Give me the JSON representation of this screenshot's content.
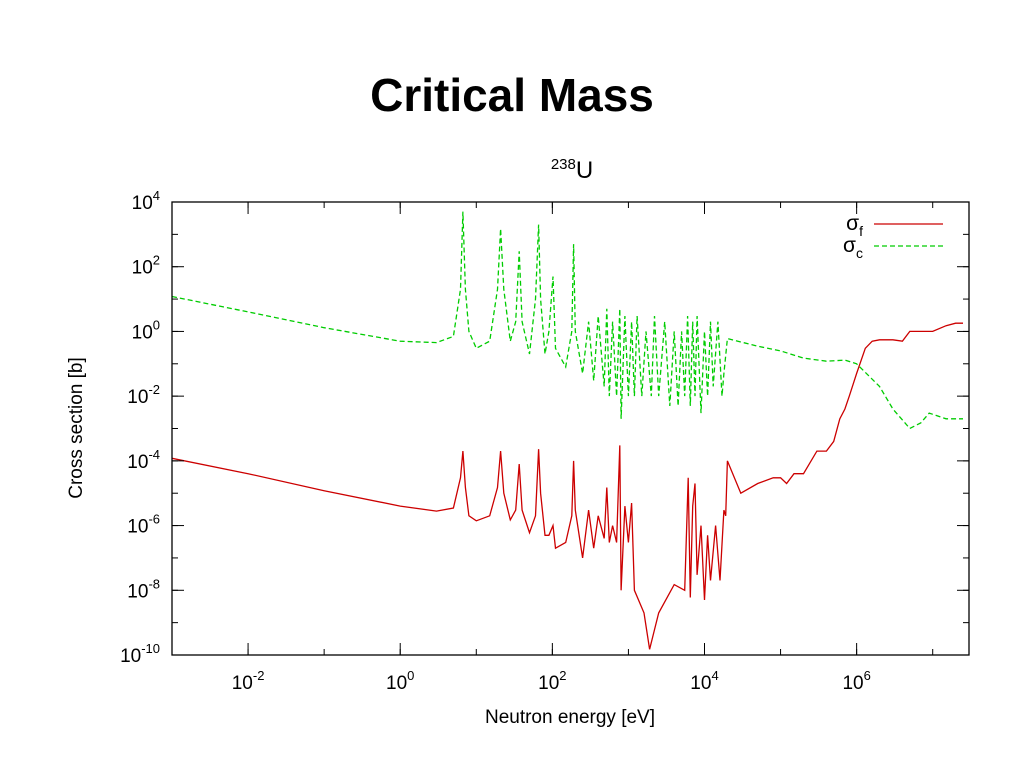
{
  "slide": {
    "title": "Critical Mass"
  },
  "chart_data": {
    "type": "line",
    "title": "U",
    "title_superscript": "238",
    "xlabel": "Neutron energy [eV]",
    "ylabel": "Cross section [b]",
    "x_scale": "log",
    "y_scale": "log",
    "xlim": [
      0.001,
      30000000
    ],
    "ylim": [
      1e-10,
      10000
    ],
    "x_ticks": [
      {
        "value": 0.01,
        "base": "10",
        "exp": "-2"
      },
      {
        "value": 1,
        "base": "10",
        "exp": "0"
      },
      {
        "value": 100,
        "base": "10",
        "exp": "2"
      },
      {
        "value": 10000,
        "base": "10",
        "exp": "4"
      },
      {
        "value": 1000000,
        "base": "10",
        "exp": "6"
      }
    ],
    "y_ticks": [
      {
        "value": 10000,
        "base": "10",
        "exp": "4"
      },
      {
        "value": 100,
        "base": "10",
        "exp": "2"
      },
      {
        "value": 1,
        "base": "10",
        "exp": "0"
      },
      {
        "value": 0.01,
        "base": "10",
        "exp": "-2"
      },
      {
        "value": 0.0001,
        "base": "10",
        "exp": "-4"
      },
      {
        "value": 1e-06,
        "base": "10",
        "exp": "-6"
      },
      {
        "value": 1e-08,
        "base": "10",
        "exp": "-8"
      },
      {
        "value": 1e-10,
        "base": "10",
        "exp": "-10"
      }
    ],
    "grid": false,
    "legend_position": "top-right",
    "series": [
      {
        "name": "σ",
        "name_sub": "f",
        "color": "#cc0000",
        "dash": "solid",
        "points": [
          [
            0.001,
            0.00012
          ],
          [
            0.01,
            4e-05
          ],
          [
            0.1,
            1.2e-05
          ],
          [
            1,
            4e-06
          ],
          [
            3,
            2.8e-06
          ],
          [
            5,
            3.5e-06
          ],
          [
            6.2,
            3e-05
          ],
          [
            6.67,
            0.0002
          ],
          [
            7.2,
            1.5e-05
          ],
          [
            8,
            2e-06
          ],
          [
            10,
            1.4e-06
          ],
          [
            15,
            2e-06
          ],
          [
            19,
            1.5e-05
          ],
          [
            20.9,
            0.0002
          ],
          [
            23,
            1e-05
          ],
          [
            28,
            1.5e-06
          ],
          [
            33,
            3e-06
          ],
          [
            36.7,
            8e-05
          ],
          [
            40,
            3e-06
          ],
          [
            50,
            6e-07
          ],
          [
            60,
            2e-06
          ],
          [
            66,
            0.00023
          ],
          [
            70,
            1e-05
          ],
          [
            80,
            5e-07
          ],
          [
            90,
            5e-07
          ],
          [
            102,
            1e-06
          ],
          [
            110,
            2e-07
          ],
          [
            150,
            3e-07
          ],
          [
            180,
            2e-06
          ],
          [
            190,
            0.0001
          ],
          [
            200,
            3e-06
          ],
          [
            250,
            1e-07
          ],
          [
            300,
            3e-06
          ],
          [
            350,
            2e-07
          ],
          [
            400,
            2e-06
          ],
          [
            480,
            4e-07
          ],
          [
            520,
            1.5e-05
          ],
          [
            560,
            3e-07
          ],
          [
            620,
            1e-06
          ],
          [
            700,
            3e-07
          ],
          [
            770,
            0.0003
          ],
          [
            800,
            1e-08
          ],
          [
            900,
            4e-06
          ],
          [
            1000,
            3e-07
          ],
          [
            1100,
            5e-06
          ],
          [
            1200,
            1e-08
          ],
          [
            1600,
            2e-09
          ],
          [
            1900,
            1.5e-10
          ],
          [
            2500,
            2e-09
          ],
          [
            4000,
            1.5e-08
          ],
          [
            5500,
            1e-08
          ],
          [
            6100,
            3e-05
          ],
          [
            6500,
            6e-09
          ],
          [
            7000,
            4e-06
          ],
          [
            7500,
            2e-05
          ],
          [
            8000,
            3e-08
          ],
          [
            9000,
            1e-06
          ],
          [
            10000,
            5e-09
          ],
          [
            11000,
            5e-07
          ],
          [
            12000,
            2e-08
          ],
          [
            14000,
            1e-06
          ],
          [
            16000,
            2e-08
          ],
          [
            18000,
            3e-06
          ],
          [
            19000,
            2e-06
          ],
          [
            20000,
            0.0001
          ],
          [
            30000,
            1e-05
          ],
          [
            50000,
            2e-05
          ],
          [
            80000,
            3e-05
          ],
          [
            100000,
            3e-05
          ],
          [
            120000,
            2e-05
          ],
          [
            150000,
            4e-05
          ],
          [
            200000,
            4e-05
          ],
          [
            300000,
            0.0002
          ],
          [
            400000,
            0.0002
          ],
          [
            500000,
            0.0004
          ],
          [
            600000,
            0.002
          ],
          [
            700000,
            0.004
          ],
          [
            800000,
            0.01
          ],
          [
            1000000,
            0.05
          ],
          [
            1300000,
            0.3
          ],
          [
            1600000,
            0.5
          ],
          [
            2000000,
            0.55
          ],
          [
            3000000,
            0.55
          ],
          [
            4000000,
            0.5
          ],
          [
            5000000,
            1
          ],
          [
            8000000,
            1
          ],
          [
            10000000,
            1
          ],
          [
            15000000,
            1.5
          ],
          [
            20000000,
            1.8
          ],
          [
            25000000,
            1.8
          ]
        ]
      },
      {
        "name": "σ",
        "name_sub": "c",
        "color": "#00cc00",
        "dash": "dashed",
        "points": [
          [
            0.001,
            12
          ],
          [
            0.01,
            4
          ],
          [
            0.1,
            1.3
          ],
          [
            1,
            0.5
          ],
          [
            3,
            0.45
          ],
          [
            5,
            0.7
          ],
          [
            6.2,
            20
          ],
          [
            6.67,
            5000
          ],
          [
            7.2,
            20
          ],
          [
            8,
            1
          ],
          [
            10,
            0.3
          ],
          [
            15,
            0.5
          ],
          [
            19,
            20
          ],
          [
            20.9,
            1500
          ],
          [
            23,
            20
          ],
          [
            28,
            0.5
          ],
          [
            33,
            2
          ],
          [
            36.7,
            300
          ],
          [
            40,
            2
          ],
          [
            50,
            0.2
          ],
          [
            60,
            10
          ],
          [
            66,
            2000
          ],
          [
            70,
            10
          ],
          [
            80,
            0.2
          ],
          [
            90,
            1
          ],
          [
            102,
            50
          ],
          [
            110,
            0.3
          ],
          [
            150,
            0.08
          ],
          [
            180,
            1
          ],
          [
            190,
            500
          ],
          [
            200,
            1
          ],
          [
            250,
            0.05
          ],
          [
            300,
            2
          ],
          [
            350,
            0.03
          ],
          [
            400,
            3
          ],
          [
            480,
            0.02
          ],
          [
            520,
            5
          ],
          [
            560,
            0.01
          ],
          [
            620,
            2
          ],
          [
            700,
            0.01
          ],
          [
            770,
            5
          ],
          [
            800,
            0.002
          ],
          [
            900,
            3
          ],
          [
            1000,
            0.01
          ],
          [
            1100,
            2
          ],
          [
            1200,
            0.01
          ],
          [
            1300,
            3
          ],
          [
            1500,
            0.01
          ],
          [
            1700,
            1
          ],
          [
            2000,
            0.01
          ],
          [
            2200,
            3
          ],
          [
            2500,
            0.01
          ],
          [
            3000,
            2
          ],
          [
            3500,
            0.005
          ],
          [
            4000,
            1
          ],
          [
            4500,
            0.005
          ],
          [
            5000,
            1
          ],
          [
            5500,
            0.01
          ],
          [
            6000,
            3
          ],
          [
            6500,
            0.005
          ],
          [
            7000,
            2
          ],
          [
            7500,
            0.01
          ],
          [
            8000,
            3
          ],
          [
            9000,
            0.003
          ],
          [
            10000,
            1
          ],
          [
            11000,
            0.01
          ],
          [
            12000,
            2
          ],
          [
            13000,
            0.02
          ],
          [
            15000,
            2
          ],
          [
            17000,
            0.01
          ],
          [
            18000,
            0.05
          ],
          [
            20000,
            0.6
          ],
          [
            50000,
            0.35
          ],
          [
            100000,
            0.25
          ],
          [
            200000,
            0.15
          ],
          [
            400000,
            0.12
          ],
          [
            700000,
            0.13
          ],
          [
            1000000,
            0.1
          ],
          [
            2000000,
            0.02
          ],
          [
            3000000,
            0.004
          ],
          [
            5000000,
            0.001
          ],
          [
            7000000,
            0.0015
          ],
          [
            9000000,
            0.003
          ],
          [
            15000000,
            0.002
          ],
          [
            25000000,
            0.002
          ]
        ]
      }
    ]
  }
}
